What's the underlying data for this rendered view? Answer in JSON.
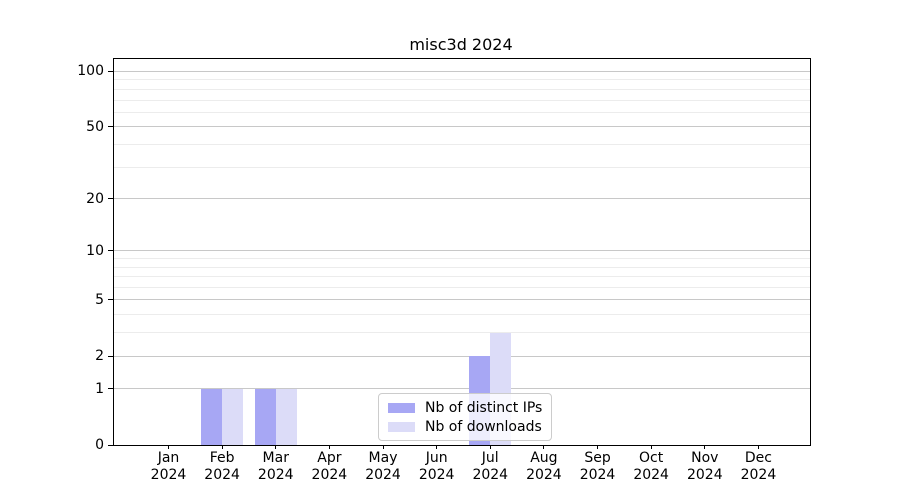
{
  "chart_data": {
    "type": "bar",
    "title": "misc3d 2024",
    "categories": [
      "Jan",
      "Feb",
      "Mar",
      "Apr",
      "May",
      "Jun",
      "Jul",
      "Aug",
      "Sep",
      "Oct",
      "Nov",
      "Dec"
    ],
    "category_year": "2024",
    "series": [
      {
        "name": "Nb of distinct IPs",
        "color": "#a7a7f4",
        "values": [
          0,
          1,
          1,
          0,
          0,
          0,
          2,
          0,
          0,
          0,
          0,
          0
        ]
      },
      {
        "name": "Nb of downloads",
        "color": "#dcdcf8",
        "values": [
          0,
          1,
          1,
          0,
          0,
          0,
          3,
          0,
          0,
          0,
          0,
          0
        ]
      }
    ],
    "xlabel": "",
    "ylabel": "",
    "y_axis": {
      "scale": "log1p",
      "ticks": [
        0,
        1,
        2,
        5,
        10,
        20,
        50,
        100
      ],
      "minor_ticks": [
        3,
        4,
        6,
        7,
        8,
        9,
        30,
        40,
        60,
        70,
        80,
        90
      ],
      "range": [
        0,
        117
      ]
    },
    "grid": {
      "enabled": true,
      "major_color": "#c8c8c8",
      "minor_color": "#ececec"
    },
    "legend": {
      "position": "lower-center-inside"
    }
  }
}
